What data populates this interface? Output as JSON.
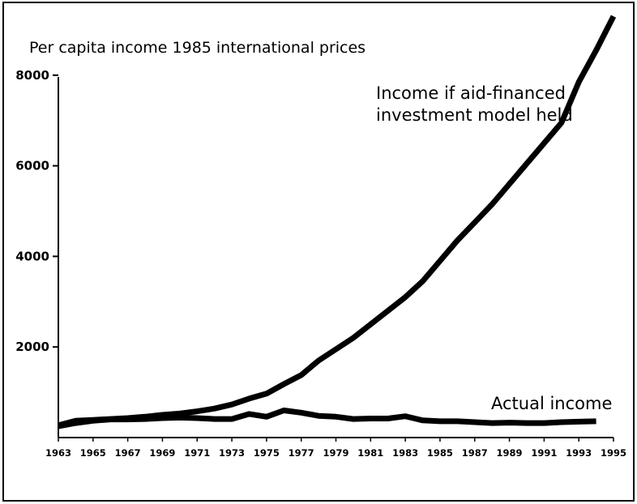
{
  "chart_data": {
    "type": "line",
    "title": "Per capita income 1985 international prices",
    "xlabel": "",
    "ylabel": "",
    "xlim": [
      1963,
      1995
    ],
    "ylim": [
      0,
      8500
    ],
    "yticks": [
      2000,
      4000,
      6000,
      8000
    ],
    "xticks": [
      1963,
      1965,
      1967,
      1969,
      1971,
      1973,
      1975,
      1977,
      1979,
      1981,
      1983,
      1985,
      1987,
      1989,
      1991,
      1993,
      1995
    ],
    "grid": false,
    "series": [
      {
        "name": "Income if aid-financed investment model held",
        "name_lines": [
          "Income if aid-financed",
          "investment model held"
        ],
        "x": [
          1963,
          1964,
          1965,
          1966,
          1967,
          1968,
          1969,
          1970,
          1971,
          1972,
          1973,
          1974,
          1975,
          1976,
          1977,
          1978,
          1979,
          1980,
          1981,
          1982,
          1983,
          1984,
          1985,
          1986,
          1987,
          1988,
          1989,
          1990,
          1991,
          1992,
          1993,
          1994,
          1995
        ],
        "y": [
          270,
          370,
          390,
          410,
          430,
          460,
          500,
          530,
          580,
          640,
          730,
          860,
          970,
          1180,
          1380,
          1700,
          1950,
          2200,
          2500,
          2800,
          3100,
          3450,
          3900,
          4350,
          4750,
          5150,
          5600,
          6050,
          6500,
          6950,
          7850,
          8550,
          9300
        ]
      },
      {
        "name": "Actual income",
        "name_lines": [
          "Actual income"
        ],
        "x": [
          1963,
          1964,
          1965,
          1966,
          1967,
          1968,
          1969,
          1970,
          1971,
          1972,
          1973,
          1974,
          1975,
          1976,
          1977,
          1978,
          1979,
          1980,
          1981,
          1982,
          1983,
          1984,
          1985,
          1986,
          1987,
          1988,
          1989,
          1990,
          1991,
          1992,
          1993,
          1994
        ],
        "y": [
          250,
          320,
          370,
          400,
          400,
          410,
          430,
          440,
          430,
          410,
          410,
          520,
          460,
          600,
          550,
          480,
          460,
          410,
          420,
          420,
          470,
          380,
          360,
          360,
          340,
          320,
          330,
          320,
          320,
          340,
          350,
          360
        ]
      }
    ],
    "colors": {
      "line": "#000000",
      "axis": "#000000",
      "background": "#ffffff"
    }
  }
}
